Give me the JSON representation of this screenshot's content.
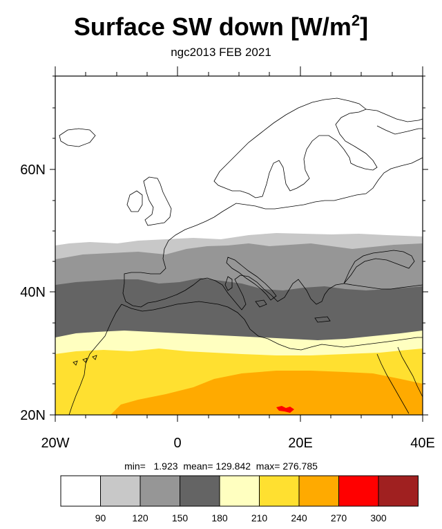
{
  "title": "Surface SW down [W/m",
  "title_sup": "2",
  "title_end": "]",
  "subtitle": "ngc2013 FEB 2021",
  "axes": {
    "lat_labels": [
      "60N",
      "40N",
      "20N"
    ],
    "lon_labels": [
      "20W",
      "0",
      "20E",
      "40E"
    ],
    "lat_range": [
      20,
      75
    ],
    "lon_range": [
      -20,
      40
    ]
  },
  "stats": {
    "min_label": "min=",
    "min_value": "1.923",
    "mean_label": "mean=",
    "mean_value": "129.842",
    "max_label": "max=",
    "max_value": "276.785"
  },
  "colorbar": {
    "levels": [
      "90",
      "120",
      "150",
      "180",
      "210",
      "240",
      "270",
      "300"
    ],
    "colors": [
      "#ffffff",
      "#c8c8c8",
      "#969696",
      "#646464",
      "#ffffc0",
      "#ffe030",
      "#ffaa00",
      "#ff0000",
      "#a02020"
    ]
  },
  "field_colors": {
    "white": "#ffffff",
    "light_gray": "#c8c8c8",
    "mid_gray": "#969696",
    "dark_gray": "#646464",
    "pale_yellow": "#ffffc0",
    "yellow": "#ffe030",
    "orange": "#ffaa00",
    "red": "#ff0000"
  }
}
